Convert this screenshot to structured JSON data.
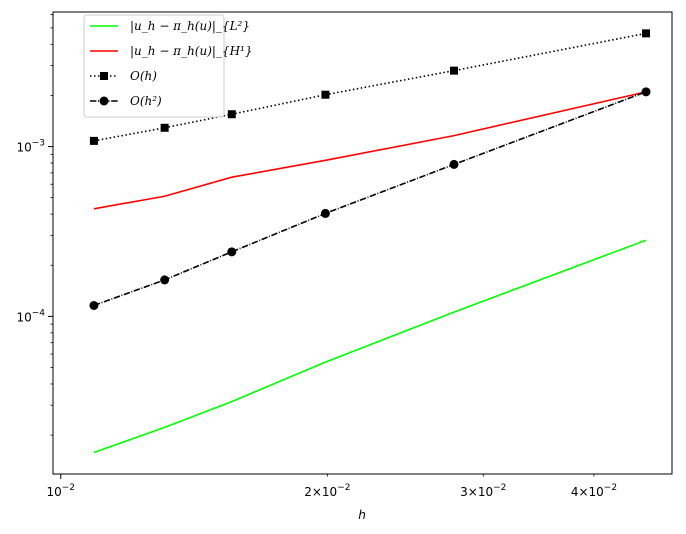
{
  "chart_data": {
    "type": "line",
    "title": "",
    "xlabel": "h",
    "ylabel": "",
    "xscale": "log",
    "yscale": "log",
    "xlim": [
      0.0098,
      0.049
    ],
    "ylim": [
      1.18e-05,
      0.0062
    ],
    "x_major_ticks": [
      {
        "value": 0.01,
        "base": "10",
        "exp": "−2"
      }
    ],
    "x_minor_labeled_ticks": [
      {
        "value": 0.02,
        "mant": "2",
        "base": "10",
        "exp": "−2"
      },
      {
        "value": 0.03,
        "mant": "3",
        "base": "10",
        "exp": "−2"
      },
      {
        "value": 0.04,
        "mant": "4",
        "base": "10",
        "exp": "−2"
      }
    ],
    "y_major_ticks": [
      {
        "value": 0.0001,
        "base": "10",
        "exp": "−4"
      },
      {
        "value": 0.001,
        "base": "10",
        "exp": "−3"
      }
    ],
    "grid": false,
    "legend_position": "top-left",
    "x": [
      0.0109,
      0.0131,
      0.0156,
      0.0199,
      0.0278,
      0.0458
    ],
    "series": [
      {
        "name": "|u_h − π_h(u)|_{L²}",
        "color": "#00ff00",
        "style": "solid",
        "marker": "none",
        "values": [
          1.58e-05,
          2.22e-05,
          3.15e-05,
          5.38e-05,
          0.000106,
          0.000281
        ]
      },
      {
        "name": "|u_h − π_h(u)|_{H¹}",
        "color": "#ff0000",
        "style": "solid",
        "marker": "none",
        "values": [
          0.00043,
          0.00051,
          0.00066,
          0.00083,
          0.00116,
          0.0021
        ]
      },
      {
        "name": "O(h)",
        "color": "#000000",
        "style": "dotted",
        "marker": "square",
        "values": [
          0.00108,
          0.00129,
          0.00155,
          0.00202,
          0.0028,
          0.00464
        ]
      },
      {
        "name": "O(h²)",
        "color": "#000000",
        "style": "dashdot",
        "marker": "circle",
        "values": [
          0.000116,
          0.000164,
          0.00024,
          0.000404,
          0.000785,
          0.0021
        ]
      }
    ]
  }
}
